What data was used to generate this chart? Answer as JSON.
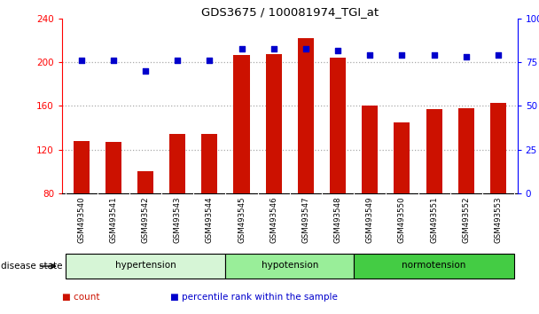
{
  "title": "GDS3675 / 100081974_TGI_at",
  "samples": [
    "GSM493540",
    "GSM493541",
    "GSM493542",
    "GSM493543",
    "GSM493544",
    "GSM493545",
    "GSM493546",
    "GSM493547",
    "GSM493548",
    "GSM493549",
    "GSM493550",
    "GSM493551",
    "GSM493552",
    "GSM493553"
  ],
  "count_values": [
    128,
    127,
    100,
    134,
    134,
    207,
    208,
    222,
    204,
    160,
    145,
    157,
    158,
    163
  ],
  "percentile_values": [
    76,
    76,
    70,
    76,
    76,
    83,
    83,
    83,
    82,
    79,
    79,
    79,
    78,
    79
  ],
  "groups": [
    {
      "label": "hypertension",
      "start": 0,
      "end": 5,
      "color": "#d6f5d6"
    },
    {
      "label": "hypotension",
      "start": 5,
      "end": 9,
      "color": "#99ee99"
    },
    {
      "label": "normotension",
      "start": 9,
      "end": 14,
      "color": "#44cc44"
    }
  ],
  "ylim_left": [
    80,
    240
  ],
  "ylim_right": [
    0,
    100
  ],
  "yticks_left": [
    80,
    120,
    160,
    200,
    240
  ],
  "yticks_right": [
    0,
    25,
    50,
    75,
    100
  ],
  "bar_color": "#cc1100",
  "dot_color": "#0000cc",
  "background_color": "#ffffff",
  "grid_color": "#aaaaaa",
  "tick_label_bg": "#cccccc",
  "legend_items": [
    "count",
    "percentile rank within the sample"
  ],
  "legend_colors": [
    "#cc1100",
    "#0000cc"
  ],
  "disease_state_label": "disease state"
}
